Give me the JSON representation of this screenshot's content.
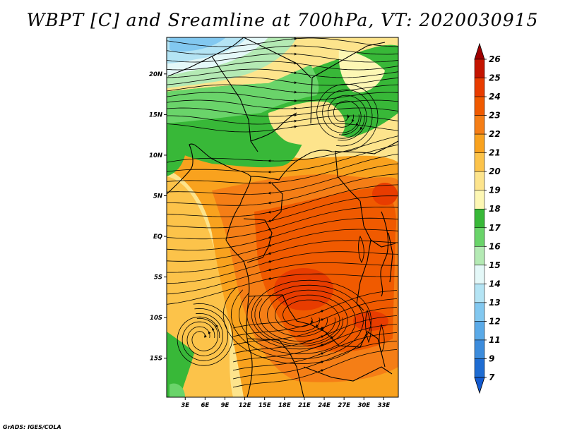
{
  "title": "WBPT [C] and Sreamline at 700hPa, VT: 2020030915",
  "footer": "GrADS: IGES/COLA",
  "map": {
    "lat_labels": [
      "20N",
      "15N",
      "10N",
      "5N",
      "EQ",
      "5S",
      "10S",
      "15S"
    ],
    "lat_values": [
      20,
      15,
      10,
      5,
      0,
      -5,
      -10,
      -15
    ],
    "lon_labels": [
      "3E",
      "6E",
      "9E",
      "12E",
      "15E",
      "18E",
      "21E",
      "24E",
      "27E",
      "30E",
      "33E"
    ],
    "lon_values": [
      3,
      6,
      9,
      12,
      15,
      18,
      21,
      24,
      27,
      30,
      33
    ],
    "lat_range": [
      -19.8,
      24.5
    ],
    "lon_range": [
      0.2,
      35.2
    ],
    "variable": "WBPT",
    "units": "C",
    "level": "700hPa",
    "valid_time": "2020030915"
  },
  "colorbar": {
    "labels": [
      "26",
      "25",
      "24",
      "23",
      "22",
      "21",
      "20",
      "19",
      "18",
      "17",
      "16",
      "15",
      "14",
      "13",
      "12",
      "11",
      "9",
      "7"
    ],
    "colors": [
      "#a00000",
      "#c41400",
      "#e83c00",
      "#f05a00",
      "#f57e16",
      "#f9a21e",
      "#fcc34a",
      "#fde48c",
      "#fdf7b4",
      "#38b838",
      "#6ad46a",
      "#b4eab4",
      "#e4f8f8",
      "#b4e4f4",
      "#82c8f0",
      "#5aaae8",
      "#3c8cdc",
      "#1e6cd2",
      "#125ad0"
    ],
    "extends": "both"
  }
}
